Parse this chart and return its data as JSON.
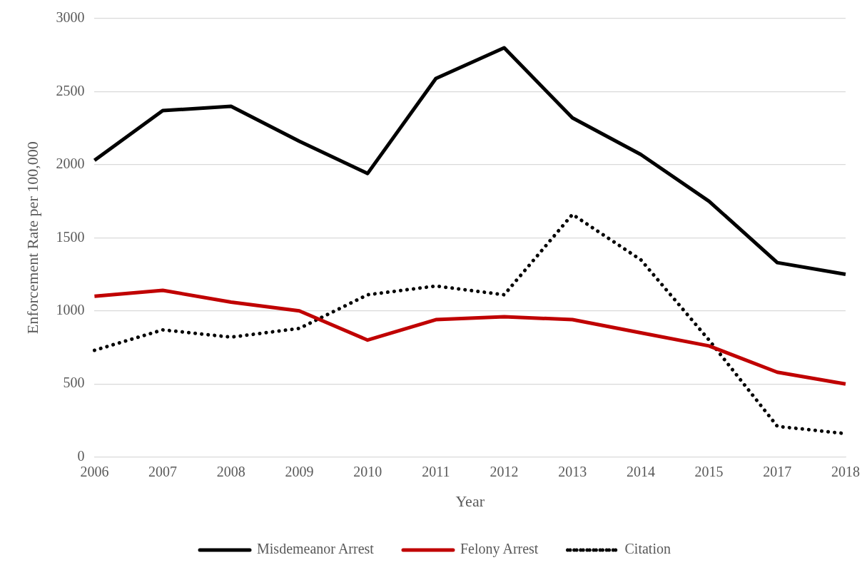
{
  "chart_data": {
    "type": "line",
    "xlabel": "Year",
    "ylabel": "Enforcement Rate per 100,000",
    "categories": [
      "2006",
      "2007",
      "2008",
      "2009",
      "2010",
      "2011",
      "2012",
      "2013",
      "2014",
      "2015",
      "2017",
      "2018"
    ],
    "series": [
      {
        "name": "Misdemeanor Arrest",
        "color": "#000000",
        "line_style": "solid",
        "values": [
          2030,
          2370,
          2400,
          2160,
          1940,
          2590,
          2800,
          2320,
          2070,
          1750,
          1330,
          1250
        ]
      },
      {
        "name": "Felony Arrest",
        "color": "#c00000",
        "line_style": "solid",
        "values": [
          1100,
          1140,
          1060,
          1000,
          800,
          940,
          960,
          940,
          850,
          760,
          580,
          500
        ]
      },
      {
        "name": "Citation",
        "color": "#000000",
        "line_style": "dotted",
        "values": [
          730,
          870,
          820,
          880,
          1110,
          1170,
          1110,
          1660,
          1350,
          800,
          210,
          160
        ]
      }
    ],
    "ylim": [
      0,
      3000
    ],
    "yticks": [
      0,
      500,
      1000,
      1500,
      2000,
      2500,
      3000
    ],
    "grid": "y",
    "legend": "bottom",
    "marker": "none"
  }
}
